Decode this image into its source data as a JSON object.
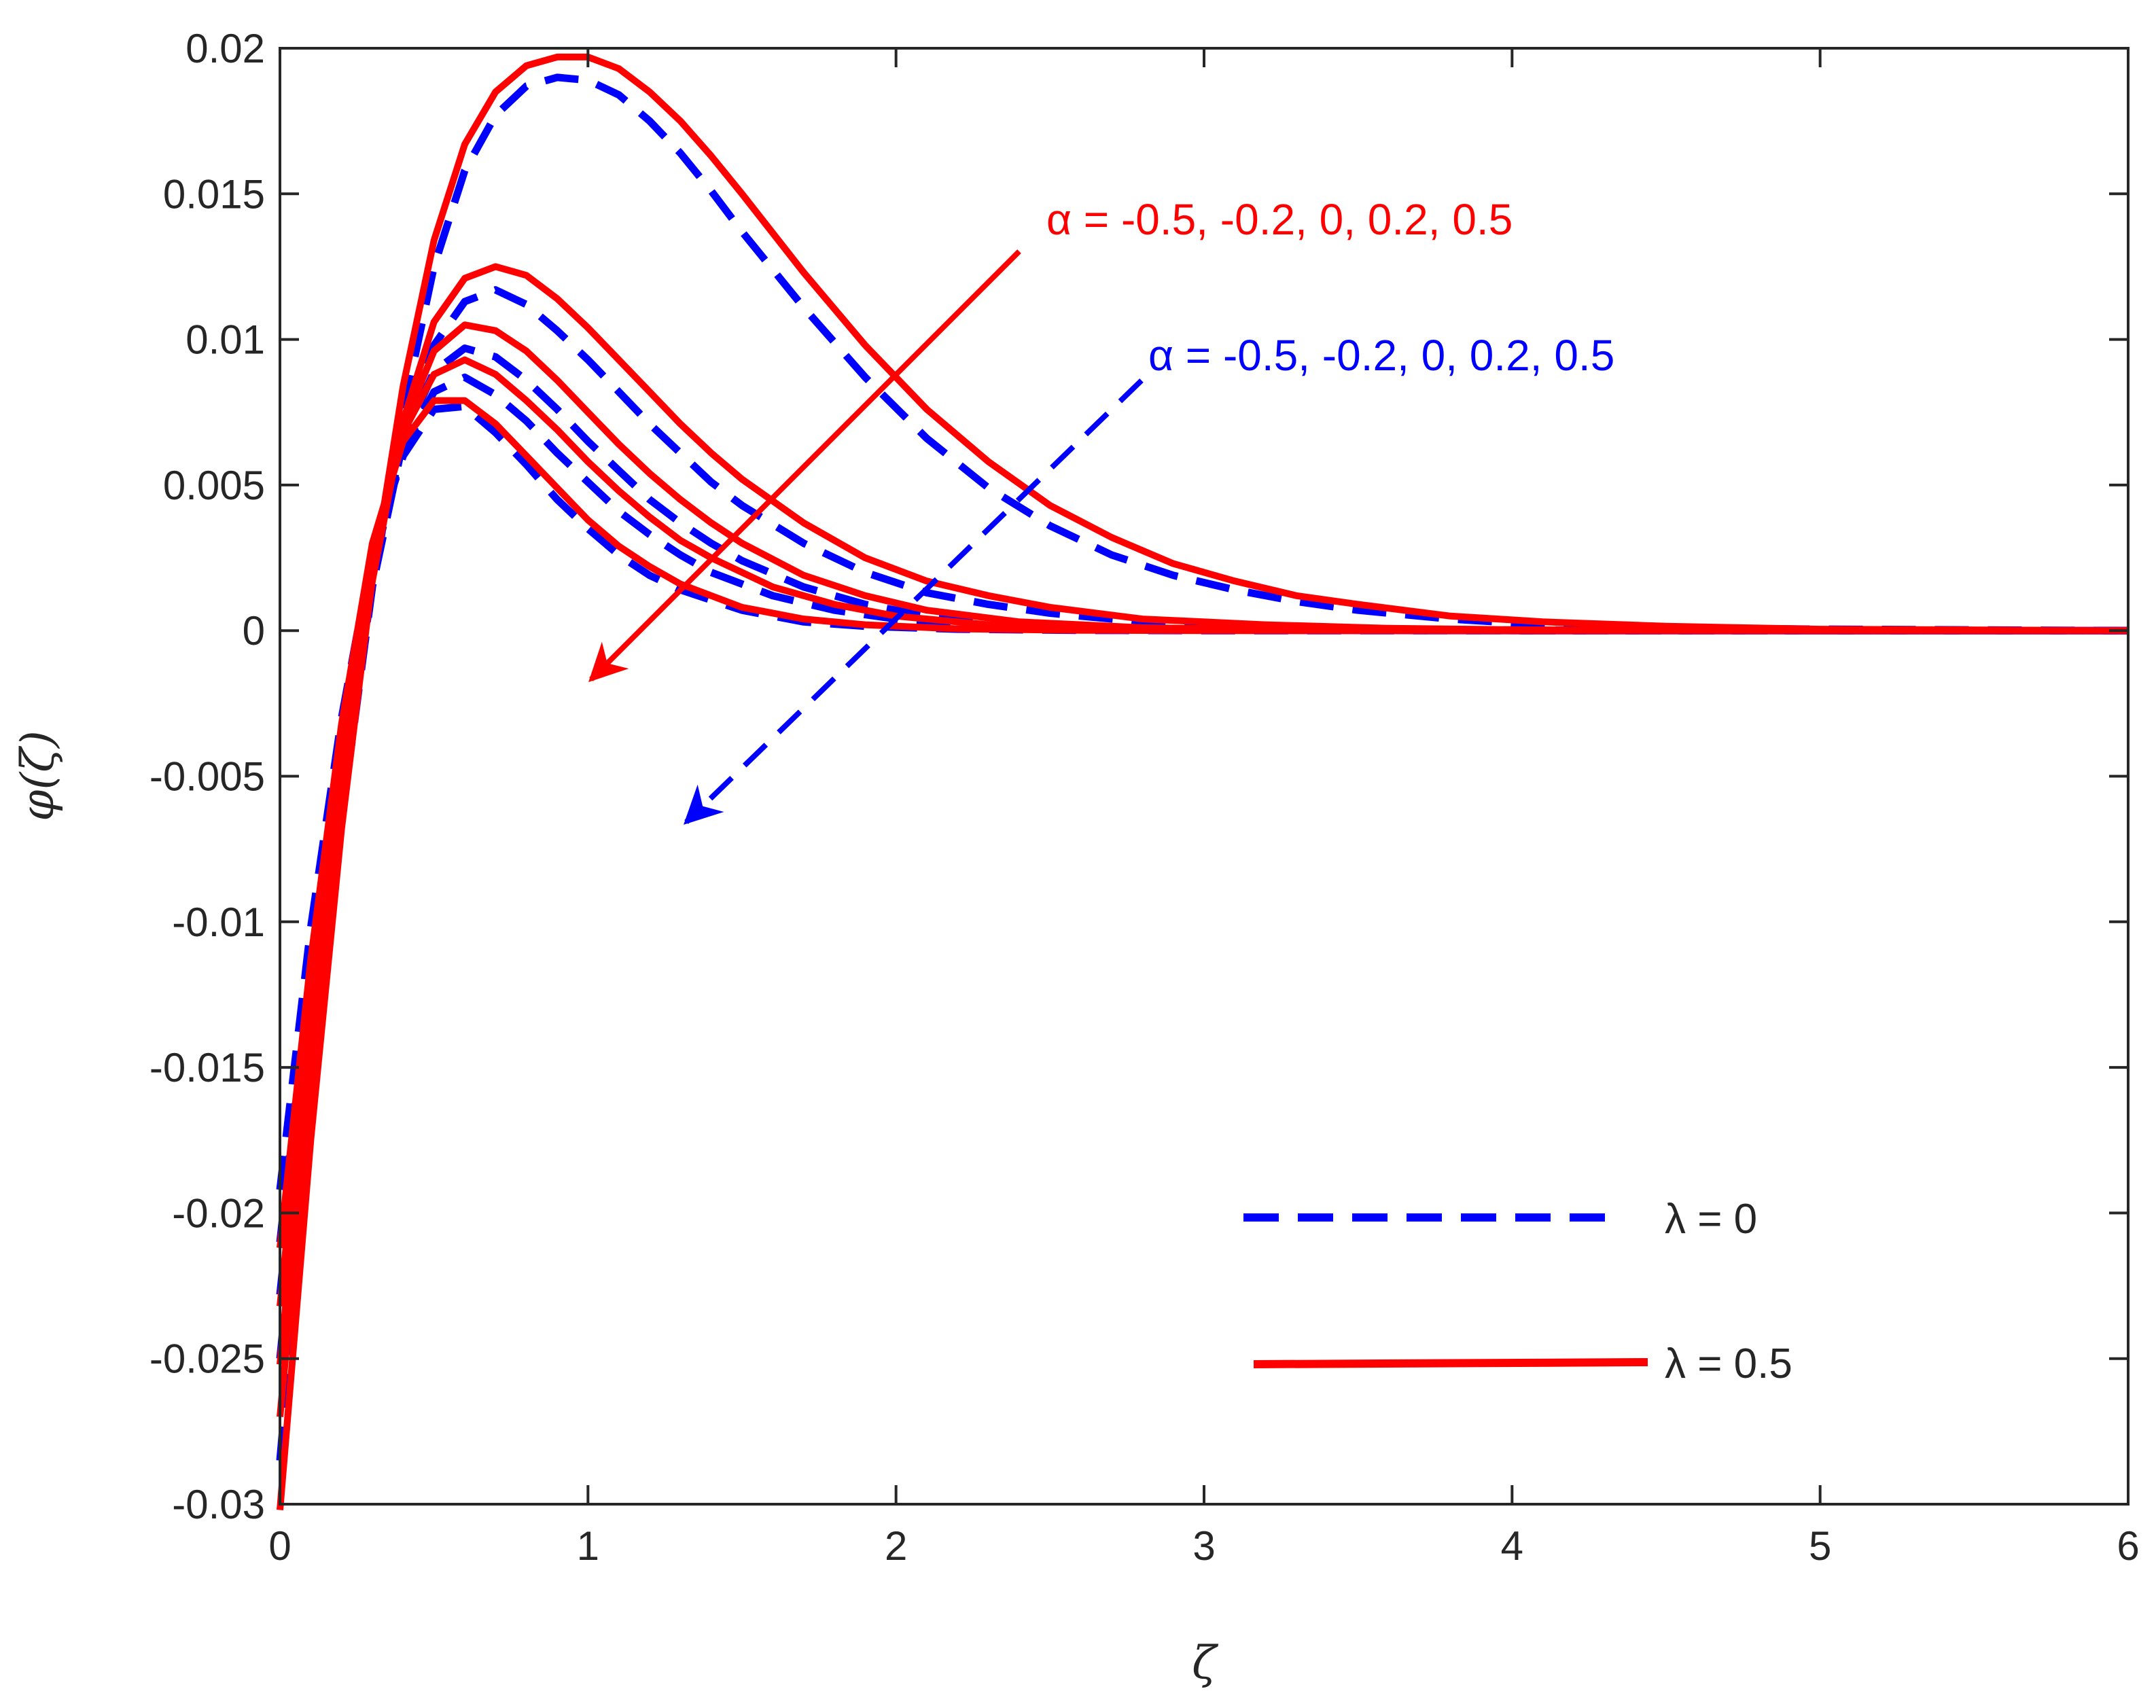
{
  "chart_data": {
    "type": "line",
    "title": "",
    "xlabel": "ζ",
    "ylabel": "φ(ζ)",
    "xlim": [
      0,
      6
    ],
    "ylim": [
      -0.03,
      0.02
    ],
    "xticks": [
      0,
      1,
      2,
      3,
      4,
      5,
      6
    ],
    "xtick_labels": [
      "0",
      "1",
      "2",
      "3",
      "4",
      "5",
      "6"
    ],
    "yticks": [
      -0.03,
      -0.025,
      -0.02,
      -0.015,
      -0.01,
      -0.005,
      0,
      0.005,
      0.01,
      0.015,
      0.02
    ],
    "ytick_labels": [
      "-0.03",
      "-0.025",
      "-0.02",
      "-0.015",
      "-0.01",
      "-0.005",
      "0",
      "0.005",
      "0.01",
      "0.015",
      "0.02"
    ],
    "grid": false,
    "legend_position": "bottom-right",
    "legend": [
      {
        "label": "λ = 0",
        "color": "#0000ff",
        "style": "dashed"
      },
      {
        "label": "λ = 0.5",
        "color": "#ff0000",
        "style": "solid"
      }
    ],
    "annotations": [
      {
        "text": "α = -0.5, -0.2, 0, 0.2, 0.5",
        "color": "#ff0000",
        "arrow_from": [
          2.4,
          0.0132
        ],
        "arrow_to": [
          1.0,
          -0.0018
        ]
      },
      {
        "text": "α = -0.5, -0.2, 0, 0.2, 0.5",
        "color": "#0000ff",
        "arrow_from": [
          2.8,
          0.0085
        ],
        "arrow_to": [
          1.3,
          -0.0067
        ]
      }
    ],
    "series": [
      {
        "group": "λ = 0",
        "color": "#0000ff",
        "dash": true,
        "x": [
          0,
          0.1,
          0.2,
          0.3,
          0.4,
          0.5,
          0.6,
          0.7,
          0.8,
          0.9,
          1.0,
          1.1,
          1.2,
          1.3,
          1.4,
          1.5,
          1.7,
          1.9,
          2.1,
          2.3,
          2.5,
          2.7,
          2.9,
          3.1,
          3.3,
          3.5,
          3.8,
          4.1,
          4.5,
          5.0,
          6.0
        ],
        "y": [
          -0.0285,
          -0.0165,
          -0.0065,
          0.0015,
          0.0075,
          0.0125,
          0.0158,
          0.0177,
          0.0187,
          0.019,
          0.0189,
          0.0184,
          0.0175,
          0.0164,
          0.0151,
          0.0137,
          0.0111,
          0.0087,
          0.0066,
          0.0049,
          0.0036,
          0.0026,
          0.0019,
          0.0014,
          0.001,
          0.0007,
          0.0004,
          0.0002,
          0.0001,
          5e-05,
          0
        ]
      },
      {
        "group": "λ = 0",
        "color": "#0000ff",
        "dash": true,
        "x": [
          0,
          0.1,
          0.2,
          0.3,
          0.4,
          0.5,
          0.6,
          0.7,
          0.8,
          0.9,
          1.0,
          1.1,
          1.2,
          1.3,
          1.4,
          1.5,
          1.7,
          1.9,
          2.1,
          2.3,
          2.5,
          2.8,
          3.2,
          3.6,
          4.0,
          5.0,
          6.0
        ],
        "y": [
          -0.025,
          -0.0145,
          -0.0055,
          0.0015,
          0.0065,
          0.0098,
          0.0113,
          0.0117,
          0.0112,
          0.0103,
          0.0093,
          0.0082,
          0.0071,
          0.0061,
          0.0051,
          0.0043,
          0.003,
          0.002,
          0.0013,
          0.0009,
          0.0006,
          0.0003,
          0.0001,
          5e-05,
          2e-05,
          0,
          0
        ]
      },
      {
        "group": "λ = 0",
        "color": "#0000ff",
        "dash": true,
        "x": [
          0,
          0.1,
          0.2,
          0.3,
          0.4,
          0.5,
          0.6,
          0.7,
          0.8,
          0.9,
          1.0,
          1.1,
          1.2,
          1.3,
          1.4,
          1.5,
          1.7,
          1.9,
          2.1,
          2.4,
          2.8,
          3.3,
          4.0,
          5.0,
          6.0
        ],
        "y": [
          -0.0228,
          -0.0128,
          -0.0045,
          0.002,
          0.0065,
          0.0089,
          0.0097,
          0.0094,
          0.0086,
          0.0076,
          0.0065,
          0.0055,
          0.0045,
          0.0037,
          0.003,
          0.0024,
          0.0015,
          0.0009,
          0.0005,
          0.0002,
          8e-05,
          2e-05,
          0,
          0,
          0
        ]
      },
      {
        "group": "λ = 0",
        "color": "#0000ff",
        "dash": true,
        "x": [
          0,
          0.1,
          0.2,
          0.3,
          0.4,
          0.5,
          0.6,
          0.7,
          0.8,
          0.9,
          1.0,
          1.1,
          1.2,
          1.3,
          1.4,
          1.6,
          1.8,
          2.0,
          2.3,
          2.7,
          3.2,
          4.0,
          5.0,
          6.0
        ],
        "y": [
          -0.021,
          -0.0115,
          -0.0037,
          0.0024,
          0.0062,
          0.0082,
          0.0087,
          0.0081,
          0.0072,
          0.0061,
          0.0051,
          0.0041,
          0.0033,
          0.0026,
          0.002,
          0.0012,
          0.0007,
          0.0004,
          0.00015,
          5e-05,
          1e-05,
          0,
          0,
          0
        ]
      },
      {
        "group": "λ = 0",
        "color": "#0000ff",
        "dash": true,
        "x": [
          0,
          0.1,
          0.2,
          0.3,
          0.4,
          0.5,
          0.6,
          0.7,
          0.8,
          0.9,
          1.0,
          1.1,
          1.2,
          1.3,
          1.5,
          1.7,
          1.9,
          2.2,
          2.6,
          3.0,
          4.0,
          5.0,
          6.0
        ],
        "y": [
          -0.0192,
          -0.0102,
          -0.003,
          0.0027,
          0.006,
          0.0076,
          0.0077,
          0.0068,
          0.0057,
          0.0045,
          0.0035,
          0.0026,
          0.0019,
          0.0014,
          0.0007,
          0.0003,
          0.00015,
          5e-05,
          1e-05,
          0,
          0,
          0,
          0
        ]
      },
      {
        "group": "λ = 0.5",
        "color": "#ff0000",
        "dash": false,
        "x": [
          0,
          0.1,
          0.2,
          0.3,
          0.4,
          0.5,
          0.6,
          0.7,
          0.8,
          0.9,
          1.0,
          1.1,
          1.2,
          1.3,
          1.4,
          1.5,
          1.7,
          1.9,
          2.1,
          2.3,
          2.5,
          2.7,
          2.9,
          3.1,
          3.3,
          3.5,
          3.8,
          4.1,
          4.5,
          5.0,
          6.0
        ],
        "y": [
          -0.0302,
          -0.0175,
          -0.0068,
          0.0018,
          0.0084,
          0.0134,
          0.0167,
          0.0185,
          0.0194,
          0.0197,
          0.0197,
          0.0193,
          0.0185,
          0.0175,
          0.0163,
          0.015,
          0.0123,
          0.0098,
          0.0076,
          0.0058,
          0.0043,
          0.0032,
          0.0023,
          0.0017,
          0.0012,
          0.0009,
          0.0005,
          0.0003,
          0.00015,
          5e-05,
          0
        ]
      },
      {
        "group": "λ = 0.5",
        "color": "#ff0000",
        "dash": false,
        "x": [
          0,
          0.1,
          0.2,
          0.3,
          0.4,
          0.5,
          0.6,
          0.7,
          0.8,
          0.9,
          1.0,
          1.1,
          1.2,
          1.3,
          1.4,
          1.5,
          1.7,
          1.9,
          2.1,
          2.3,
          2.5,
          2.8,
          3.2,
          3.6,
          4.0,
          5.0,
          6.0
        ],
        "y": [
          -0.027,
          -0.0158,
          -0.006,
          0.0017,
          0.0072,
          0.0106,
          0.0121,
          0.0125,
          0.0122,
          0.0114,
          0.0104,
          0.0093,
          0.0082,
          0.0071,
          0.0061,
          0.0052,
          0.0037,
          0.0025,
          0.0017,
          0.0012,
          0.0008,
          0.0004,
          0.0002,
          8e-05,
          3e-05,
          0,
          0
        ]
      },
      {
        "group": "λ = 0.5",
        "color": "#ff0000",
        "dash": false,
        "x": [
          0,
          0.1,
          0.2,
          0.3,
          0.4,
          0.5,
          0.6,
          0.7,
          0.8,
          0.9,
          1.0,
          1.1,
          1.2,
          1.3,
          1.4,
          1.5,
          1.7,
          1.9,
          2.1,
          2.4,
          2.8,
          3.3,
          4.0,
          5.0,
          6.0
        ],
        "y": [
          -0.0252,
          -0.0142,
          -0.005,
          0.0022,
          0.007,
          0.0096,
          0.0105,
          0.0103,
          0.0096,
          0.0086,
          0.0075,
          0.0064,
          0.0054,
          0.0045,
          0.0037,
          0.003,
          0.0019,
          0.0012,
          0.0007,
          0.0003,
          0.0001,
          3e-05,
          0,
          0,
          0
        ]
      },
      {
        "group": "λ = 0.5",
        "color": "#ff0000",
        "dash": false,
        "x": [
          0,
          0.1,
          0.2,
          0.3,
          0.4,
          0.5,
          0.6,
          0.7,
          0.8,
          0.9,
          1.0,
          1.1,
          1.2,
          1.3,
          1.4,
          1.6,
          1.8,
          2.0,
          2.3,
          2.7,
          3.2,
          4.0,
          5.0,
          6.0
        ],
        "y": [
          -0.0232,
          -0.0128,
          -0.004,
          0.0027,
          0.0068,
          0.0088,
          0.0093,
          0.0088,
          0.0079,
          0.0069,
          0.0058,
          0.0048,
          0.0039,
          0.0031,
          0.0025,
          0.0015,
          0.0009,
          0.0005,
          0.0002,
          6e-05,
          1e-05,
          0,
          0,
          0
        ]
      },
      {
        "group": "λ = 0.5",
        "color": "#ff0000",
        "dash": false,
        "x": [
          0,
          0.1,
          0.2,
          0.3,
          0.4,
          0.5,
          0.6,
          0.7,
          0.8,
          0.9,
          1.0,
          1.1,
          1.2,
          1.3,
          1.5,
          1.7,
          1.9,
          2.2,
          2.6,
          3.0,
          4.0,
          5.0,
          6.0
        ],
        "y": [
          -0.0212,
          -0.0113,
          -0.0032,
          0.003,
          0.0065,
          0.0079,
          0.0079,
          0.0071,
          0.006,
          0.0049,
          0.0038,
          0.0029,
          0.0022,
          0.0016,
          0.0008,
          0.0004,
          0.0002,
          6e-05,
          1e-05,
          0,
          0,
          0,
          0
        ]
      }
    ]
  }
}
